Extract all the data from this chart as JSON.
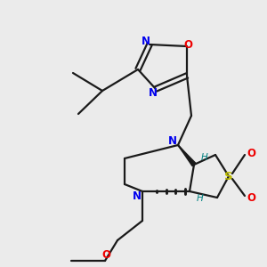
{
  "bg_color": "#ebebeb",
  "bond_color": "#1a1a1a",
  "N_color": "#0000ee",
  "O_color": "#ee0000",
  "S_color": "#bbbb00",
  "H_color": "#008080",
  "lw": 1.6,
  "fs": 8.5,
  "figsize": [
    3.0,
    3.0
  ],
  "dpi": 100,
  "xlim": [
    0,
    300
  ],
  "ylim": [
    0,
    300
  ]
}
